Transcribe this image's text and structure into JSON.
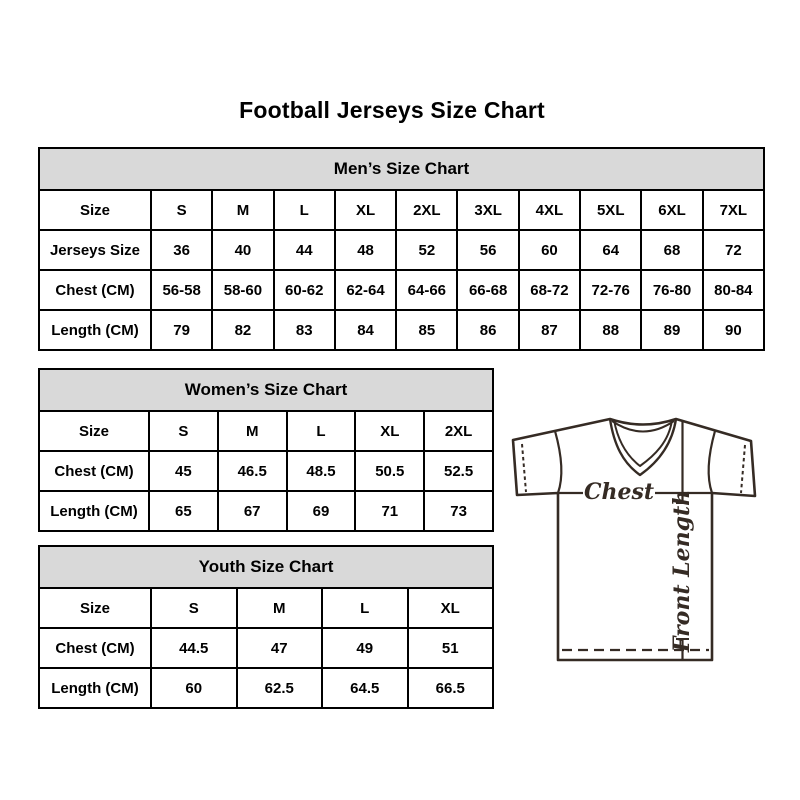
{
  "page": {
    "title": "Football Jerseys Size Chart"
  },
  "colors": {
    "table_border": "#000000",
    "header_bg": "#d9d9d9",
    "jersey_line": "#352b24",
    "text": "#000000"
  },
  "tables": {
    "mens": {
      "title": "Men’s Size Chart",
      "col_header": "Size",
      "columns": [
        "S",
        "M",
        "L",
        "XL",
        "2XL",
        "3XL",
        "4XL",
        "5XL",
        "6XL",
        "7XL"
      ],
      "rows": [
        {
          "label": "Jerseys Size",
          "values": [
            "36",
            "40",
            "44",
            "48",
            "52",
            "56",
            "60",
            "64",
            "68",
            "72"
          ]
        },
        {
          "label": "Chest (CM)",
          "values": [
            "56-58",
            "58-60",
            "60-62",
            "62-64",
            "64-66",
            "66-68",
            "68-72",
            "72-76",
            "76-80",
            "80-84"
          ]
        },
        {
          "label": "Length (CM)",
          "values": [
            "79",
            "82",
            "83",
            "84",
            "85",
            "86",
            "87",
            "88",
            "89",
            "90"
          ]
        }
      ]
    },
    "womens": {
      "title": "Women’s Size Chart",
      "col_header": "Size",
      "columns": [
        "S",
        "M",
        "L",
        "XL",
        "2XL"
      ],
      "rows": [
        {
          "label": "Chest (CM)",
          "values": [
            "45",
            "46.5",
            "48.5",
            "50.5",
            "52.5"
          ]
        },
        {
          "label": "Length (CM)",
          "values": [
            "65",
            "67",
            "69",
            "71",
            "73"
          ]
        }
      ]
    },
    "youth": {
      "title": "Youth Size Chart",
      "col_header": "Size",
      "columns": [
        "S",
        "M",
        "L",
        "XL"
      ],
      "rows": [
        {
          "label": "Chest (CM)",
          "values": [
            "44.5",
            "47",
            "49",
            "51"
          ]
        },
        {
          "label": "Length (CM)",
          "values": [
            "60",
            "62.5",
            "64.5",
            "66.5"
          ]
        }
      ]
    }
  },
  "jersey": {
    "chest_label": "Chest",
    "front_length_label": "Front Length"
  }
}
